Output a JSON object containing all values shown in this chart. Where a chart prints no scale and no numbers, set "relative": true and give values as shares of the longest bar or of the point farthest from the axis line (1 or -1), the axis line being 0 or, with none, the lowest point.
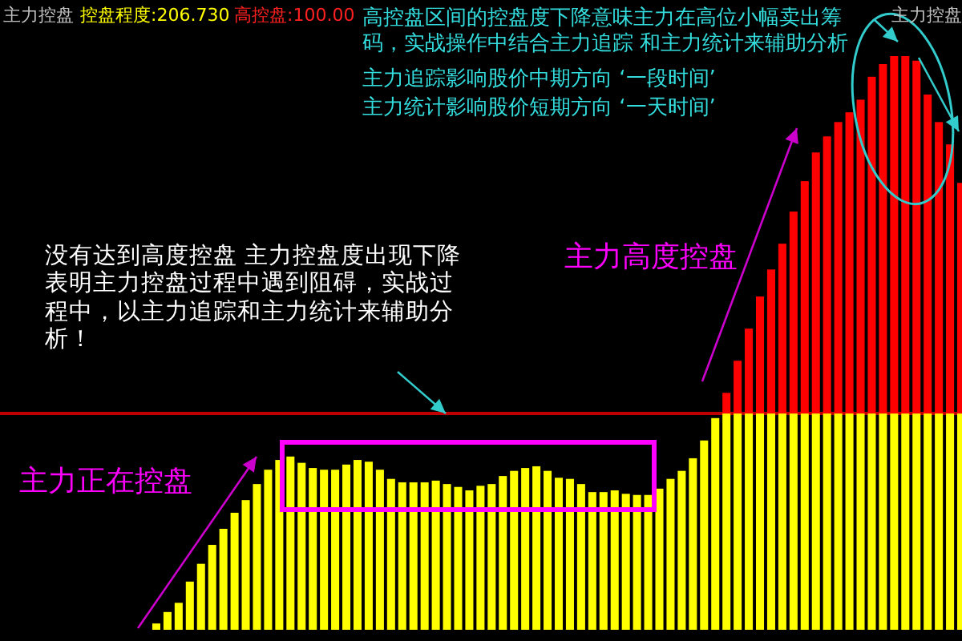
{
  "chart_data": {
    "type": "bar",
    "title": "主力控盘",
    "relative": true,
    "stacked": true,
    "categories": [
      null,
      null,
      null,
      null,
      null,
      null,
      null,
      null,
      null,
      null,
      null,
      null,
      null,
      null,
      null,
      null,
      null,
      null,
      null,
      null,
      null,
      null,
      null,
      null,
      null,
      null,
      null,
      null,
      null,
      null,
      null,
      null,
      null,
      null,
      null,
      null,
      null,
      null,
      null,
      null,
      null,
      null,
      null,
      null,
      null,
      null,
      null,
      null,
      null,
      null,
      null,
      null,
      null,
      null,
      null,
      null,
      null,
      null,
      null,
      null,
      null,
      null,
      null,
      null,
      null,
      null,
      null,
      null,
      null,
      null,
      null,
      null,
      null
    ],
    "series": [
      {
        "color": "#ffff00",
        "values": [
          0.011,
          0.031,
          0.047,
          0.084,
          0.115,
          0.148,
          0.176,
          0.204,
          0.226,
          0.254,
          0.279,
          0.296,
          0.302,
          0.291,
          0.282,
          0.279,
          0.279,
          0.288,
          0.296,
          0.293,
          0.279,
          0.263,
          0.257,
          0.257,
          0.257,
          0.26,
          0.254,
          0.249,
          0.243,
          0.251,
          0.254,
          0.268,
          0.277,
          0.282,
          0.285,
          0.277,
          0.265,
          0.263,
          0.254,
          0.24,
          0.24,
          0.243,
          0.237,
          0.235,
          0.235,
          0.246,
          0.263,
          0.277,
          0.299,
          0.33,
          0.369,
          0.377,
          0.377,
          0.377,
          0.377,
          0.377,
          0.377,
          0.377,
          0.377,
          0.377,
          0.377,
          0.377,
          0.377,
          0.377,
          0.377,
          0.377,
          0.377,
          0.377,
          0.377,
          0.377,
          0.377,
          0.377,
          0.377
        ]
      },
      {
        "color": "#ff0000",
        "values": [
          null,
          null,
          null,
          null,
          null,
          null,
          null,
          null,
          null,
          null,
          null,
          null,
          null,
          null,
          null,
          null,
          null,
          null,
          null,
          null,
          null,
          null,
          null,
          null,
          null,
          null,
          null,
          null,
          null,
          null,
          null,
          null,
          null,
          null,
          null,
          null,
          null,
          null,
          null,
          null,
          null,
          null,
          null,
          null,
          null,
          null,
          null,
          null,
          null,
          null,
          null,
          0.036,
          0.092,
          0.148,
          0.204,
          0.251,
          0.296,
          0.352,
          0.405,
          0.455,
          0.483,
          0.508,
          0.525,
          0.547,
          0.587,
          0.609,
          0.623,
          0.623,
          0.615,
          0.556,
          0.508,
          0.469,
          0.402
        ]
      }
    ],
    "ref_lines": [
      {
        "axis": "y",
        "value": 0.377,
        "color": "#c00000"
      }
    ],
    "annotations": [
      "控盘程度:206.730",
      "高控盘:100.00",
      "主力控盘",
      "高控盘区间的控盘度下降意味主力在高位小幅卖出筹码，实战操作中结合主力追踪 和主力统计来辅助分析",
      "主力追踪影响股价中期方向 ‘一段时间’",
      "主力统计影响股价短期方向 ‘一天时间’",
      "没有达到高度控盘 主力控盘度出现下降表明主力控盘过程中遇到阻碍，实战过程中，以主力追踪和主力统计来辅助分析！",
      "主力高度控盘",
      "主力正在控盘"
    ]
  }
}
